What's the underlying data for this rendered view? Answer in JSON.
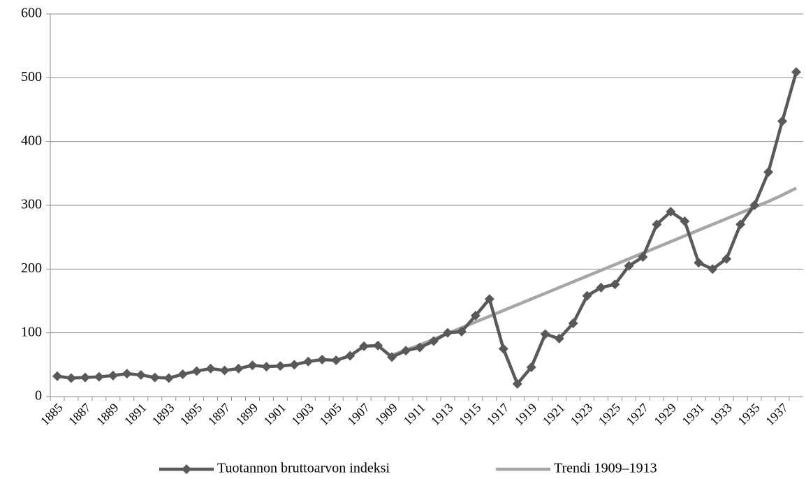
{
  "chart_data": {
    "type": "line",
    "categories": [
      "1885",
      null,
      "1887",
      null,
      "1889",
      null,
      "1891",
      null,
      "1893",
      null,
      "1895",
      null,
      "1897",
      null,
      "1899",
      null,
      "1901",
      null,
      "1903",
      null,
      "1905",
      null,
      "1907",
      null,
      "1909",
      null,
      "1911",
      null,
      "1913",
      null,
      "1915",
      null,
      "1917",
      null,
      "1919",
      null,
      "1921",
      null,
      "1923",
      null,
      "1925",
      null,
      "1927",
      null,
      "1929",
      null,
      "1931",
      null,
      "1933",
      null,
      "1935",
      null,
      "1937",
      null
    ],
    "series": [
      {
        "name": "Tuotannon bruttoarvon indeksi",
        "color": "#595959",
        "marker": "diamond",
        "values": [
          32,
          29,
          30,
          31,
          33,
          36,
          34,
          30,
          29,
          35,
          40,
          44,
          41,
          44,
          49,
          47,
          48,
          50,
          55,
          58,
          57,
          64,
          79,
          80,
          62,
          72,
          77,
          87,
          100,
          102,
          127,
          153,
          75,
          20,
          46,
          98,
          91,
          115,
          158,
          171,
          176,
          205,
          219,
          270,
          290,
          275,
          210,
          200,
          216,
          270,
          300,
          352,
          432,
          509
        ]
      },
      {
        "name": "Trendi 1909–1913",
        "color": "#a6a6a6",
        "values": [
          null,
          null,
          null,
          null,
          null,
          null,
          null,
          null,
          null,
          null,
          null,
          null,
          null,
          null,
          null,
          null,
          null,
          null,
          null,
          null,
          null,
          null,
          null,
          null,
          65,
          73,
          81,
          90,
          99,
          108,
          117,
          126,
          135,
          144,
          153,
          162,
          171,
          180,
          189,
          198,
          207,
          216,
          225,
          234,
          243,
          252,
          261,
          270,
          279,
          288,
          297,
          306,
          316,
          327
        ]
      }
    ],
    "ylim": [
      0,
      600
    ],
    "yticks": [
      0,
      100,
      200,
      300,
      400,
      500,
      600
    ],
    "grid": true,
    "legend": "bottom"
  }
}
